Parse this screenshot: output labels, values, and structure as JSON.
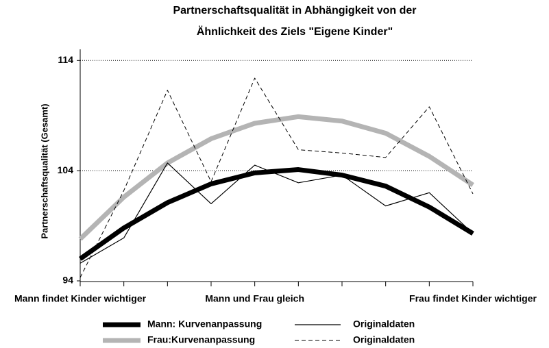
{
  "chart_data": {
    "type": "line",
    "title": [
      "Partnerschaftsqualität in Abhängigkeit von der",
      "Ähnlichkeit des Ziels \"Eigene Kinder\""
    ],
    "y_label": "Partnerschaftsqualität (Gesamt)",
    "categories": [
      "Mann findet Kinder wichtiger",
      null,
      null,
      null,
      "Mann und Frau gleich",
      null,
      null,
      null,
      null,
      "Frau findet Kinder wichtiger"
    ],
    "ylim": [
      94,
      115.2
    ],
    "yticks": [
      94,
      104,
      114
    ],
    "grid": true,
    "series": [
      {
        "name": "Mann: Kurvenanpassung",
        "color": "#000000",
        "width": 7,
        "dash": "none",
        "values": [
          96.0,
          98.8,
          101.1,
          102.8,
          103.8,
          104.1,
          103.6,
          102.6,
          100.7,
          98.3
        ]
      },
      {
        "name": "Frau:Kurvenanpassung",
        "color": "#b4b4b4",
        "width": 7,
        "dash": "none",
        "values": [
          97.8,
          101.6,
          104.7,
          106.9,
          108.3,
          108.9,
          108.5,
          107.4,
          105.3,
          102.7
        ]
      },
      {
        "name": "Originaldaten",
        "color": "#000000",
        "width": 1.2,
        "dash": "none",
        "values": [
          95.6,
          97.9,
          104.7,
          101.0,
          104.5,
          102.9,
          103.6,
          100.8,
          102.0,
          98.3
        ]
      },
      {
        "name": "Originaldaten",
        "color": "#000000",
        "width": 1,
        "dash": "6,4",
        "values": [
          94.3,
          102.2,
          111.3,
          103.0,
          112.4,
          105.9,
          105.6,
          105.2,
          109.8,
          101.9
        ]
      }
    ]
  }
}
